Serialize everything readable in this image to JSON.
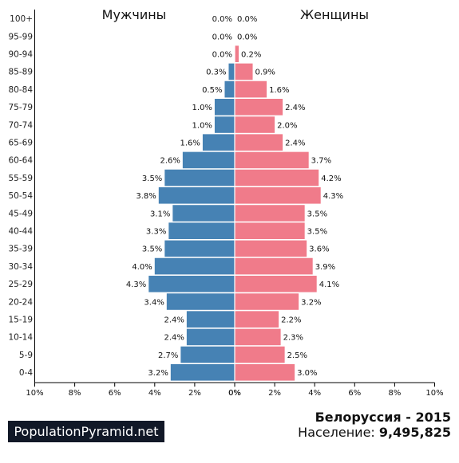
{
  "chart_data": {
    "type": "bar",
    "orientation": "horizontal-pyramid",
    "categories": [
      "0-4",
      "5-9",
      "10-14",
      "15-19",
      "20-24",
      "25-29",
      "30-34",
      "35-39",
      "40-44",
      "45-49",
      "50-54",
      "55-59",
      "60-64",
      "65-69",
      "70-74",
      "75-79",
      "80-84",
      "85-89",
      "90-94",
      "95-99",
      "100+"
    ],
    "series": [
      {
        "name": "Мужчины",
        "side": "left",
        "color": "#4682b4",
        "values": [
          3.2,
          2.7,
          2.4,
          2.4,
          3.4,
          4.3,
          4.0,
          3.5,
          3.3,
          3.1,
          3.8,
          3.5,
          2.6,
          1.6,
          1.0,
          1.0,
          0.5,
          0.3,
          0.0,
          0.0,
          0.0
        ]
      },
      {
        "name": "Женщины",
        "side": "right",
        "color": "#f07b8a",
        "values": [
          3.0,
          2.5,
          2.3,
          2.2,
          3.2,
          4.1,
          3.9,
          3.6,
          3.5,
          3.5,
          4.3,
          4.2,
          3.7,
          2.4,
          2.0,
          2.4,
          1.6,
          0.9,
          0.2,
          0.0,
          0.0
        ]
      }
    ],
    "xlim": [
      0,
      10
    ],
    "x_ticks": [
      "10%",
      "8%",
      "6%",
      "4%",
      "2%",
      "0%",
      "0%",
      "2%",
      "4%",
      "6%",
      "8%",
      "10%"
    ],
    "value_suffix": "%"
  },
  "footer": {
    "brand": "PopulationPyramid.net",
    "country_year": "Белоруссия - 2015",
    "population_label": "Население:",
    "population_value": "9,495,825"
  }
}
